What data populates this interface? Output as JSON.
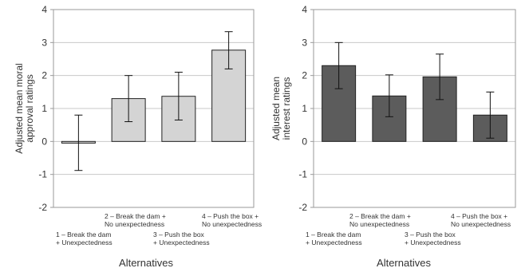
{
  "chart_data": [
    {
      "type": "bar",
      "ylabel_lines": [
        "Adjusted mean moral",
        "approval ratings"
      ],
      "xlabel": "Alternatives",
      "ylim": [
        -2,
        4
      ],
      "yticks": [
        "-2",
        "-1",
        "0",
        "1",
        "2",
        "3",
        "4"
      ],
      "grid": true,
      "bar_color": "#d4d4d4",
      "categories": [
        {
          "lines": [
            "1 – Break the dam",
            "+ Unexpectedness"
          ],
          "row": "low"
        },
        {
          "lines": [
            "2 – Break the dam +",
            "No unexpectedness"
          ],
          "row": "high"
        },
        {
          "lines": [
            "3 – Push the box",
            "+ Unexpectedness"
          ],
          "row": "low"
        },
        {
          "lines": [
            "4 – Push the box +",
            "No unexpectedness"
          ],
          "row": "high"
        }
      ],
      "values": [
        -0.05,
        1.3,
        1.37,
        2.77
      ],
      "error_low": [
        -0.88,
        0.6,
        0.65,
        2.2
      ],
      "error_high": [
        0.8,
        2.0,
        2.1,
        3.33
      ]
    },
    {
      "type": "bar",
      "ylabel_lines": [
        "Adjusted mean",
        "interest ratings"
      ],
      "xlabel": "Alternatives",
      "ylim": [
        -2,
        4
      ],
      "yticks": [
        "-2",
        "-1",
        "0",
        "1",
        "2",
        "3",
        "4"
      ],
      "grid": true,
      "bar_color": "#5c5c5c",
      "categories": [
        {
          "lines": [
            "1 – Break the dam",
            "+ Unexpectedness"
          ],
          "row": "low"
        },
        {
          "lines": [
            "2 – Break the dam +",
            "No unexpectedness"
          ],
          "row": "high"
        },
        {
          "lines": [
            "3 – Push the box",
            "+ Unexpectedness"
          ],
          "row": "low"
        },
        {
          "lines": [
            "4 – Push the box +",
            "No unexpectedness"
          ],
          "row": "high"
        }
      ],
      "values": [
        2.3,
        1.38,
        1.96,
        0.8
      ],
      "error_low": [
        1.6,
        0.75,
        1.27,
        0.1
      ],
      "error_high": [
        3.0,
        2.02,
        2.65,
        1.5
      ]
    }
  ]
}
